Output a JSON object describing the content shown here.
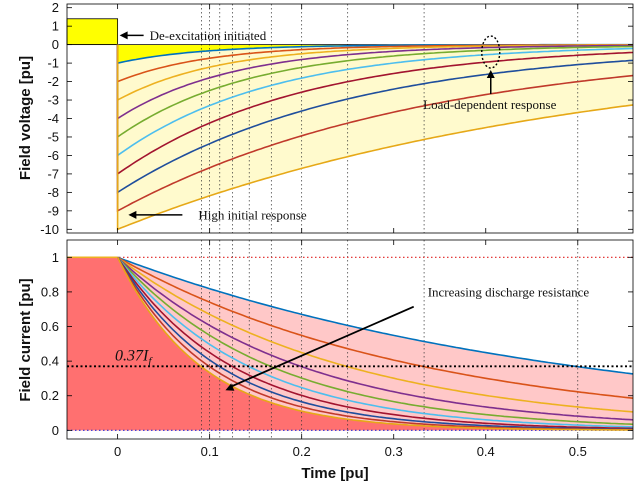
{
  "chart_data": [
    {
      "type": "line",
      "ylabel": "Field voltage [pu]",
      "xlim": [
        -0.055,
        0.56
      ],
      "ylim": [
        -10.2,
        2.2
      ],
      "xticks": [
        0,
        0.1,
        0.2,
        0.3,
        0.4,
        0.5
      ],
      "xtick_labels": [
        "0",
        "0.1",
        "0.2",
        "0.3",
        "0.4",
        "0.5"
      ],
      "yticks": [
        -10,
        -9,
        -8,
        -7,
        -6,
        -5,
        -4,
        -3,
        -2,
        -1,
        0,
        1,
        2
      ],
      "ytick_labels": [
        "-10",
        "-9",
        "-8",
        "-7",
        "-6",
        "-5",
        "-4",
        "-3",
        "-2",
        "-1",
        "0",
        "1",
        "2"
      ],
      "grid": "dotted vertical lines at the discharge time constants",
      "pre_step": {
        "x": [
          -0.055,
          0
        ],
        "value": 1.4,
        "fill": "#ffff00"
      },
      "time_constants": [
        0.091,
        0.1,
        0.111,
        0.125,
        0.143,
        0.167,
        0.2,
        0.25,
        0.333,
        0.5
      ],
      "series_note": "v(t) = -k*exp(-t/tau) for t >= 0",
      "initial_values": [
        -1,
        -2,
        -3,
        -4,
        -5,
        -6,
        -7,
        -8,
        -9,
        -10
      ],
      "annotations": [
        {
          "text": "De-excitation initiated",
          "arrow_to": [
            0,
            0.5
          ]
        },
        {
          "text": "Load-dependent response",
          "arrow_to": [
            0.4,
            -0.4
          ]
        },
        {
          "text": "High initial response",
          "arrow_to": [
            0.003,
            -9.0
          ]
        }
      ]
    },
    {
      "type": "line",
      "xlabel": "Time [pu]",
      "ylabel": "Field current [pu]",
      "xlim": [
        -0.055,
        0.56
      ],
      "ylim": [
        -0.05,
        1.1
      ],
      "xticks": [
        0,
        0.1,
        0.2,
        0.3,
        0.4,
        0.5
      ],
      "xtick_labels": [
        "0",
        "0.1",
        "0.2",
        "0.3",
        "0.4",
        "0.5"
      ],
      "yticks": [
        0,
        0.2,
        0.4,
        0.6,
        0.8,
        1
      ],
      "ytick_labels": [
        "0",
        "0.2",
        "0.4",
        "0.6",
        "0.8",
        "1"
      ],
      "grid": "dotted vertical lines at the discharge time constants",
      "initial_value": 1.0,
      "reference_level": 0.37,
      "reference_label": "0.37I_f",
      "time_constants": [
        0.5,
        0.333,
        0.25,
        0.2,
        0.167,
        0.143,
        0.125,
        0.111,
        0.1,
        0.091
      ],
      "series_note": "i(t) = exp(-t/tau) for t >= 0",
      "annotations": [
        {
          "text": "Increasing discharge resistance",
          "arrow_from": [
            0.3,
            0.68
          ],
          "arrow_to": [
            0.115,
            0.22
          ]
        }
      ]
    }
  ],
  "colors": [
    "#0072bd",
    "#d95319",
    "#edb120",
    "#7e2f8e",
    "#77ac30",
    "#4dbeee",
    "#a2142f",
    "#1f4e9c",
    "#c0392b",
    "#e6a817"
  ],
  "fills": {
    "voltage_area": "#fffacd",
    "voltage_band": "#ffff00",
    "current_band": "#ffc8c8",
    "current_area": "#ff7070"
  },
  "text": {
    "top_ylabel": "Field voltage [pu]",
    "bottom_ylabel": "Field current [pu]",
    "xlabel": "Time [pu]",
    "annot_deexc": "De-excitation initiated",
    "annot_load": "Load-dependent response",
    "annot_high": "High initial response",
    "annot_resist": "Increasing discharge resistance",
    "ref_label_main": "0.37I",
    "ref_label_sub": "f"
  }
}
